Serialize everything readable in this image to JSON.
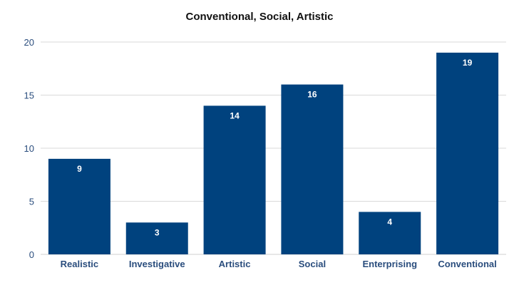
{
  "chart_data": {
    "type": "bar",
    "title": "Conventional, Social, Artistic",
    "categories": [
      "Realistic",
      "Investigative",
      "Artistic",
      "Social",
      "Enterprising",
      "Conventional"
    ],
    "values": [
      9,
      3,
      14,
      16,
      4,
      19
    ],
    "xlabel": "",
    "ylabel": "",
    "ylim": [
      0,
      20
    ],
    "yticks": [
      "0",
      "5",
      "10",
      "15",
      "20"
    ],
    "grid": true,
    "legend": "none",
    "bar_color": "#00427e",
    "data_label_color": "#ffffff",
    "tick_label_color": "#2a4d7d"
  }
}
